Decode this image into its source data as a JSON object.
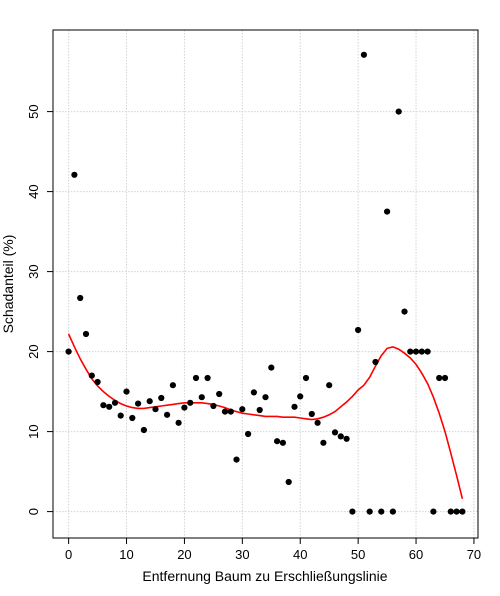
{
  "chart_data": {
    "type": "scatter",
    "xlabel": "Entfernung Baum zu Erschließungslinie",
    "ylabel": "Schadanteil (%)",
    "xlim": [
      -2.7,
      70.7
    ],
    "ylim": [
      -3.3,
      60.2
    ],
    "x_ticks": [
      0,
      10,
      20,
      30,
      40,
      50,
      60,
      70
    ],
    "y_ticks": [
      0,
      10,
      20,
      30,
      40,
      50
    ],
    "grid": true,
    "point_color": "#000000",
    "smooth_color": "#ff0000",
    "points": [
      [
        0,
        20
      ],
      [
        1,
        42.1
      ],
      [
        2,
        26.7
      ],
      [
        3,
        22.2
      ],
      [
        4,
        17
      ],
      [
        5,
        16.2
      ],
      [
        6,
        13.3
      ],
      [
        7,
        13.1
      ],
      [
        8,
        13.6
      ],
      [
        9,
        12
      ],
      [
        10,
        15
      ],
      [
        11,
        11.7
      ],
      [
        12,
        13.5
      ],
      [
        13,
        10.2
      ],
      [
        14,
        13.8
      ],
      [
        15,
        12.8
      ],
      [
        16,
        14.2
      ],
      [
        17,
        12.1
      ],
      [
        18,
        15.8
      ],
      [
        19,
        11.1
      ],
      [
        20,
        13
      ],
      [
        21,
        13.6
      ],
      [
        22,
        16.7
      ],
      [
        23,
        14.3
      ],
      [
        24,
        16.7
      ],
      [
        25,
        13.2
      ],
      [
        26,
        14.7
      ],
      [
        27,
        12.5
      ],
      [
        28,
        12.5
      ],
      [
        29,
        6.5
      ],
      [
        30,
        12.8
      ],
      [
        31,
        9.7
      ],
      [
        32,
        14.9
      ],
      [
        33,
        12.7
      ],
      [
        34,
        14.3
      ],
      [
        35,
        18
      ],
      [
        36,
        8.8
      ],
      [
        37,
        8.6
      ],
      [
        38,
        3.7
      ],
      [
        39,
        13.1
      ],
      [
        40,
        14.4
      ],
      [
        41,
        16.7
      ],
      [
        42,
        12.2
      ],
      [
        43,
        11.1
      ],
      [
        44,
        8.6
      ],
      [
        45,
        15.8
      ],
      [
        46,
        9.9
      ],
      [
        47,
        9.4
      ],
      [
        48,
        9.1
      ],
      [
        49,
        0
      ],
      [
        50,
        22.7
      ],
      [
        51,
        57.1
      ],
      [
        52,
        0
      ],
      [
        53,
        18.7
      ],
      [
        54,
        0
      ],
      [
        55,
        37.5
      ],
      [
        56,
        0
      ],
      [
        57,
        50
      ],
      [
        58,
        25
      ],
      [
        59,
        20
      ],
      [
        60,
        20
      ],
      [
        61,
        20
      ],
      [
        62,
        20
      ],
      [
        63,
        0
      ],
      [
        64,
        16.7
      ],
      [
        65,
        16.7
      ],
      [
        66,
        0
      ],
      [
        67,
        0
      ],
      [
        68,
        0
      ]
    ],
    "smooth_curve": [
      [
        0,
        22.2
      ],
      [
        1,
        20.6
      ],
      [
        2,
        19.1
      ],
      [
        3,
        17.8
      ],
      [
        4,
        16.6
      ],
      [
        5,
        15.7
      ],
      [
        6,
        15
      ],
      [
        7,
        14.4
      ],
      [
        8,
        13.9
      ],
      [
        9,
        13.5
      ],
      [
        10,
        13.2
      ],
      [
        11,
        13
      ],
      [
        12,
        12.9
      ],
      [
        13,
        12.9
      ],
      [
        14,
        13
      ],
      [
        15,
        13.1
      ],
      [
        16,
        13.2
      ],
      [
        17,
        13.3
      ],
      [
        18,
        13.4
      ],
      [
        19,
        13.5
      ],
      [
        20,
        13.6
      ],
      [
        21,
        13.6
      ],
      [
        22,
        13.6
      ],
      [
        23,
        13.6
      ],
      [
        24,
        13.5
      ],
      [
        25,
        13.4
      ],
      [
        26,
        13.2
      ],
      [
        27,
        13
      ],
      [
        28,
        12.7
      ],
      [
        29,
        12.5
      ],
      [
        30,
        12.3
      ],
      [
        31,
        12.2
      ],
      [
        32,
        12.1
      ],
      [
        33,
        12
      ],
      [
        34,
        11.9
      ],
      [
        35,
        11.9
      ],
      [
        36,
        11.9
      ],
      [
        37,
        11.8
      ],
      [
        38,
        11.8
      ],
      [
        39,
        11.8
      ],
      [
        40,
        11.7
      ],
      [
        41,
        11.6
      ],
      [
        42,
        11.5
      ],
      [
        43,
        11.6
      ],
      [
        44,
        11.8
      ],
      [
        45,
        12.1
      ],
      [
        46,
        12.5
      ],
      [
        47,
        13.1
      ],
      [
        48,
        13.7
      ],
      [
        49,
        14.4
      ],
      [
        50,
        15.2
      ],
      [
        51,
        15.8
      ],
      [
        52,
        16.8
      ],
      [
        53,
        18.2
      ],
      [
        54,
        19.5
      ],
      [
        55,
        20.4
      ],
      [
        56,
        20.6
      ],
      [
        57,
        20.3
      ],
      [
        58,
        19.8
      ],
      [
        59,
        19.2
      ],
      [
        60,
        18.4
      ],
      [
        61,
        17.3
      ],
      [
        62,
        16
      ],
      [
        63,
        14.3
      ],
      [
        64,
        12.3
      ],
      [
        65,
        10
      ],
      [
        66,
        7.3
      ],
      [
        67,
        4.5
      ],
      [
        68,
        1.6
      ]
    ]
  }
}
